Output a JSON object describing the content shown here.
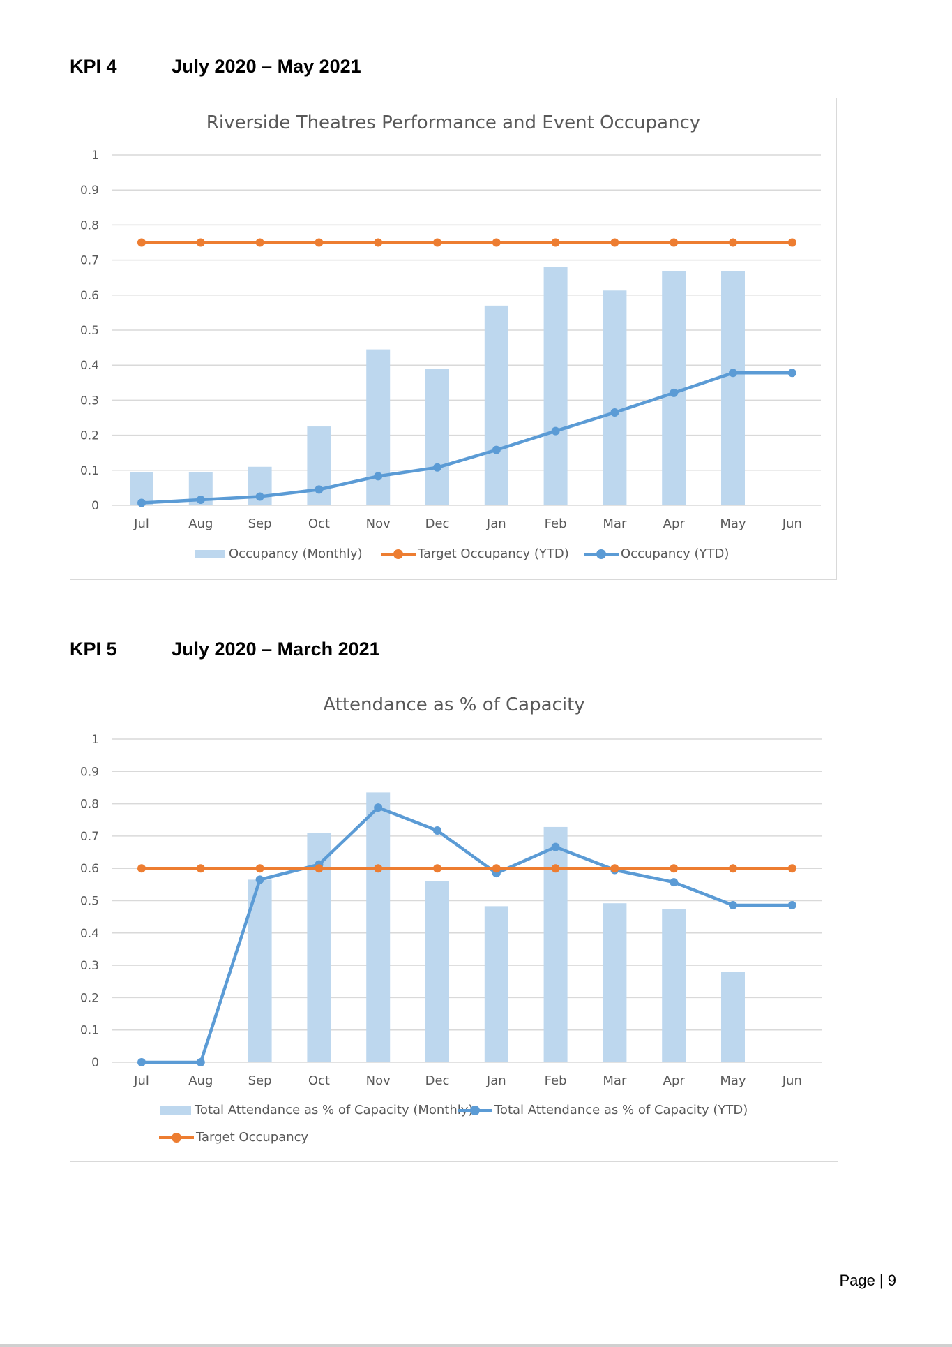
{
  "kpi4": {
    "label": "KPI 4",
    "period": "July 2020 – May 2021",
    "chart_data": {
      "type": "bar",
      "title": "Riverside Theatres Performance and Event Occupancy",
      "categories": [
        "Jul",
        "Aug",
        "Sep",
        "Oct",
        "Nov",
        "Dec",
        "Jan",
        "Feb",
        "Mar",
        "Apr",
        "May",
        "Jun"
      ],
      "ylim": [
        0,
        1
      ],
      "yticks": [
        "0",
        "0.1",
        "0.2",
        "0.3",
        "0.4",
        "0.5",
        "0.6",
        "0.7",
        "0.8",
        "0.9",
        "1"
      ],
      "grid": true,
      "legend_position": "bottom",
      "series": [
        {
          "name": "Occupancy (Monthly)",
          "kind": "bar",
          "color": "#bdd7ee",
          "values": [
            0.095,
            0.095,
            0.11,
            0.225,
            0.445,
            0.39,
            0.57,
            0.68,
            0.613,
            0.668,
            0.668,
            null
          ]
        },
        {
          "name": "Target Occupancy (YTD)",
          "kind": "line",
          "color": "#ed7d31",
          "values": [
            0.75,
            0.75,
            0.75,
            0.75,
            0.75,
            0.75,
            0.75,
            0.75,
            0.75,
            0.75,
            0.75,
            0.75
          ]
        },
        {
          "name": "Occupancy (YTD)",
          "kind": "line",
          "color": "#5b9bd5",
          "values": [
            0.007,
            0.016,
            0.025,
            0.045,
            0.083,
            0.108,
            0.158,
            0.212,
            0.265,
            0.321,
            0.378,
            0.378
          ]
        }
      ]
    }
  },
  "kpi5": {
    "label": "KPI 5",
    "period": "July 2020 – March 2021",
    "chart_data": {
      "type": "bar",
      "title": "Attendance as % of Capacity",
      "categories": [
        "Jul",
        "Aug",
        "Sep",
        "Oct",
        "Nov",
        "Dec",
        "Jan",
        "Feb",
        "Mar",
        "Apr",
        "May",
        "Jun"
      ],
      "ylim": [
        0,
        1
      ],
      "yticks": [
        "0",
        "0.1",
        "0.2",
        "0.3",
        "0.4",
        "0.5",
        "0.6",
        "0.7",
        "0.8",
        "0.9",
        "1"
      ],
      "grid": true,
      "legend_position": "bottom",
      "series": [
        {
          "name": "Total Attendance as % of Capacity (Monthly)",
          "kind": "bar",
          "color": "#bdd7ee",
          "values": [
            null,
            null,
            0.565,
            0.71,
            0.835,
            0.56,
            0.483,
            0.728,
            0.492,
            0.475,
            0.28,
            null
          ]
        },
        {
          "name": "Total Attendance as % of Capacity (YTD)",
          "kind": "line",
          "color": "#5b9bd5",
          "values": [
            0,
            0,
            0.565,
            0.612,
            0.788,
            0.717,
            0.585,
            0.666,
            0.595,
            0.557,
            0.486,
            0.486
          ]
        },
        {
          "name": "Target Occupancy",
          "kind": "line",
          "color": "#ed7d31",
          "values": [
            0.6,
            0.6,
            0.6,
            0.6,
            0.6,
            0.6,
            0.6,
            0.6,
            0.6,
            0.6,
            0.6,
            0.6
          ]
        }
      ]
    }
  },
  "footer": {
    "page_label": "Page | 9"
  }
}
